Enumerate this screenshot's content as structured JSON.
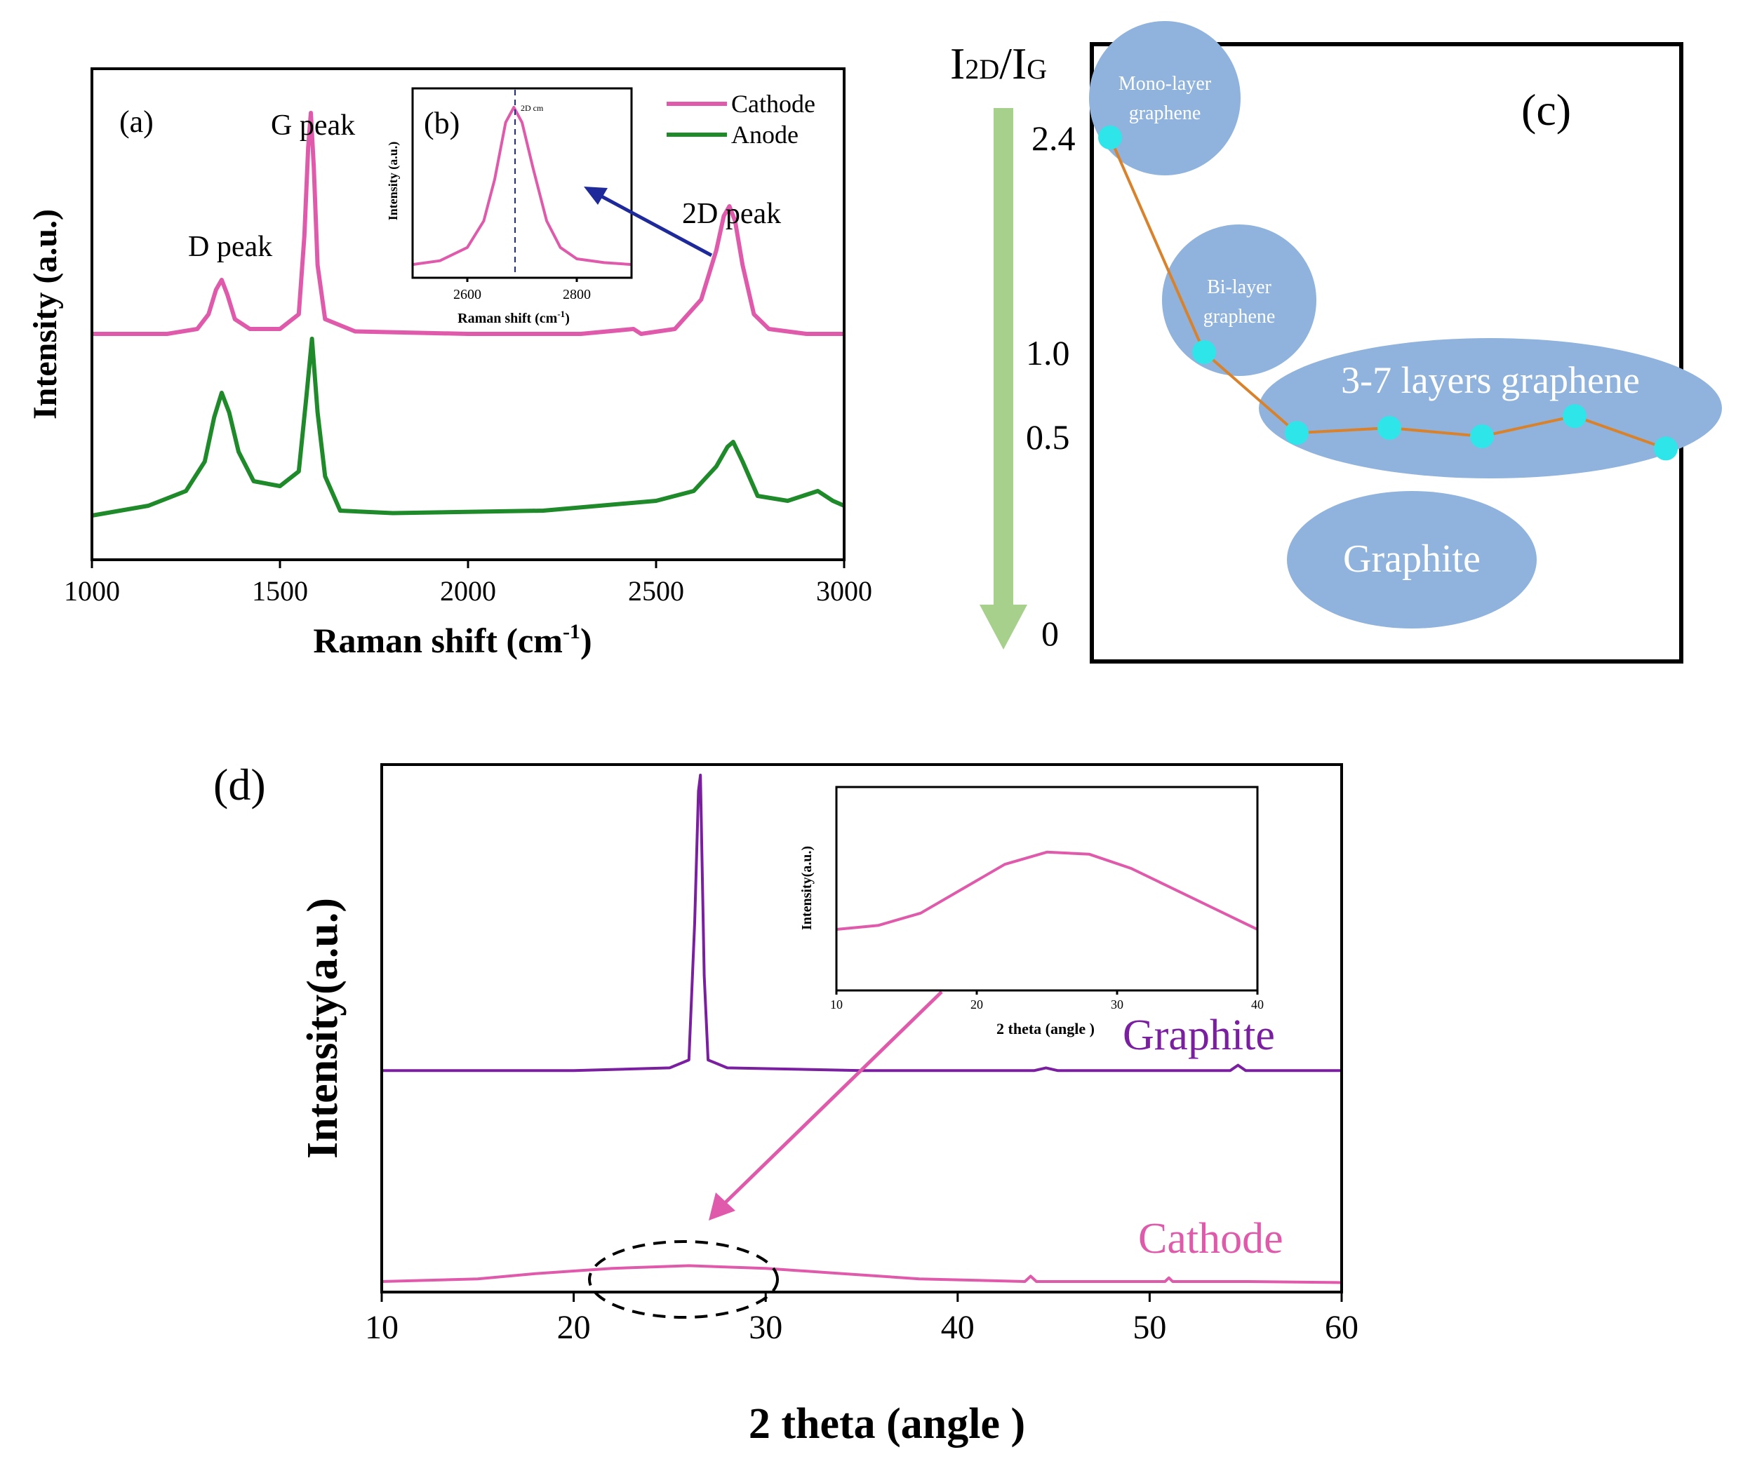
{
  "colors": {
    "cathode": "#e05aab",
    "anode": "#1f8a2a",
    "graphite": "#7a1fa0",
    "bubble": "#8fb3dc",
    "dot": "#2ee6ea",
    "connector": "#d9822b",
    "green_arrow": "#a8d08d",
    "blue_arrow": "#1f2a9a",
    "axis": "#000000"
  },
  "chart_data": [
    {
      "id": "a",
      "type": "line",
      "panel_label": "(a)",
      "xlabel_main": "Raman shift (cm",
      "xlabel_sup": "-1",
      "xlabel_close": ")",
      "ylabel": "Intensity (a.u.)",
      "xlim": [
        1000,
        3000
      ],
      "ylim": [
        0,
        1
      ],
      "x_ticks": [
        1000,
        1500,
        2000,
        2500,
        3000
      ],
      "x_tick_labels": [
        "1000",
        "1500",
        "2000",
        "2500",
        "3000"
      ],
      "series": [
        {
          "name": "Cathode",
          "color_key": "cathode",
          "x": [
            1000,
            1200,
            1280,
            1310,
            1330,
            1345,
            1360,
            1380,
            1420,
            1500,
            1550,
            1565,
            1575,
            1582,
            1590,
            1600,
            1620,
            1700,
            2000,
            2300,
            2440,
            2460,
            2550,
            2620,
            2660,
            2680,
            2695,
            2710,
            2730,
            2760,
            2800,
            2900,
            3000
          ],
          "y": [
            0.46,
            0.46,
            0.47,
            0.5,
            0.55,
            0.57,
            0.54,
            0.49,
            0.47,
            0.47,
            0.5,
            0.66,
            0.84,
            0.91,
            0.8,
            0.6,
            0.49,
            0.465,
            0.46,
            0.46,
            0.47,
            0.46,
            0.47,
            0.53,
            0.63,
            0.7,
            0.72,
            0.69,
            0.6,
            0.5,
            0.47,
            0.46,
            0.46
          ]
        },
        {
          "name": "Anode",
          "color_key": "anode",
          "x": [
            1000,
            1150,
            1250,
            1300,
            1325,
            1345,
            1365,
            1390,
            1430,
            1500,
            1550,
            1570,
            1585,
            1600,
            1620,
            1660,
            1800,
            2200,
            2500,
            2600,
            2660,
            2690,
            2705,
            2730,
            2770,
            2850,
            2930,
            2970,
            3000
          ],
          "y": [
            0.09,
            0.11,
            0.14,
            0.2,
            0.29,
            0.34,
            0.3,
            0.22,
            0.16,
            0.15,
            0.18,
            0.33,
            0.45,
            0.3,
            0.17,
            0.1,
            0.095,
            0.1,
            0.12,
            0.14,
            0.19,
            0.23,
            0.24,
            0.2,
            0.13,
            0.12,
            0.14,
            0.12,
            0.11
          ]
        }
      ],
      "legend": [
        {
          "label": "Cathode",
          "color_key": "cathode"
        },
        {
          "label": "Anode",
          "color_key": "anode"
        }
      ],
      "legend_position": "top-right",
      "annotations": [
        "D peak",
        "G peak",
        "2D peak"
      ],
      "inset": {
        "panel_label": "(b)",
        "type": "line",
        "xlabel_main": "Raman shift (cm",
        "xlabel_sup": "-1",
        "xlabel_close": ")",
        "ylabel": "Intensity (a.u.)",
        "xlim": [
          2500,
          2900
        ],
        "ylim": [
          0,
          1
        ],
        "x_ticks": [
          2600,
          2800
        ],
        "x_tick_labels": [
          "2600",
          "2800"
        ],
        "x": [
          2500,
          2550,
          2600,
          2630,
          2650,
          2670,
          2685,
          2700,
          2720,
          2745,
          2770,
          2800,
          2850,
          2900
        ],
        "y": [
          0.07,
          0.09,
          0.16,
          0.3,
          0.52,
          0.82,
          0.9,
          0.82,
          0.58,
          0.3,
          0.16,
          0.1,
          0.08,
          0.07
        ],
        "peak_marker_x": 2690,
        "peak_marker_label": "2D cm"
      }
    },
    {
      "id": "c",
      "type": "scatter",
      "panel_label": "(c)",
      "ylabel": "I2D/IG",
      "ylabel_parts": [
        "I",
        "2D",
        "/I",
        "G"
      ],
      "ylim": [
        0,
        2.6
      ],
      "y_ticks": [
        2.4,
        1.0,
        0.5,
        0
      ],
      "y_tick_labels": [
        "2.4",
        "1.0",
        "0.5",
        "0"
      ],
      "x": [
        1,
        2,
        3,
        4,
        5,
        6,
        7
      ],
      "y": [
        2.4,
        1.0,
        0.52,
        0.55,
        0.5,
        0.62,
        0.47
      ],
      "regions": [
        {
          "label_lines": [
            "Mono-layer",
            "graphene"
          ]
        },
        {
          "label_lines": [
            "Bi-layer",
            "graphene"
          ]
        },
        {
          "label_lines": [
            "3-7 layers graphene"
          ]
        },
        {
          "label_lines": [
            "Graphite"
          ]
        }
      ]
    },
    {
      "id": "d",
      "type": "line",
      "panel_label": "(d)",
      "xlabel": "2 theta (angle )",
      "ylabel": "Intensity(a.u.)",
      "xlim": [
        10,
        60
      ],
      "ylim": [
        0,
        1
      ],
      "x_ticks": [
        10,
        20,
        30,
        40,
        50,
        60
      ],
      "x_tick_labels": [
        "10",
        "20",
        "30",
        "40",
        "50",
        "60"
      ],
      "series": [
        {
          "name": "Graphite",
          "color_key": "graphite",
          "x": [
            10,
            20,
            25,
            26.0,
            26.3,
            26.5,
            26.6,
            26.8,
            27.0,
            28,
            35,
            44,
            44.6,
            45.2,
            50,
            54.2,
            54.6,
            55.0,
            60
          ],
          "y": [
            0.42,
            0.42,
            0.425,
            0.44,
            0.7,
            0.95,
            0.98,
            0.6,
            0.44,
            0.425,
            0.42,
            0.42,
            0.425,
            0.42,
            0.42,
            0.42,
            0.43,
            0.42,
            0.42
          ]
        },
        {
          "name": "Cathode",
          "color_key": "cathode",
          "x": [
            10,
            15,
            18,
            22,
            26,
            30,
            34,
            38,
            43.5,
            43.8,
            44.1,
            50.8,
            51.0,
            51.2,
            55,
            60
          ],
          "y": [
            0.02,
            0.025,
            0.035,
            0.045,
            0.05,
            0.045,
            0.035,
            0.025,
            0.02,
            0.03,
            0.02,
            0.02,
            0.027,
            0.02,
            0.02,
            0.018
          ]
        }
      ],
      "series_labels": [
        "Graphite",
        "Cathode"
      ],
      "inset": {
        "type": "line",
        "xlabel": "2 theta (angle )",
        "ylabel": "Intensity(a.u.)",
        "xlim": [
          10,
          40
        ],
        "ylim": [
          0,
          1
        ],
        "x_ticks": [
          10,
          20,
          30,
          40
        ],
        "x_tick_labels": [
          "10",
          "20",
          "30",
          "40"
        ],
        "x": [
          10,
          13,
          16,
          19,
          22,
          25,
          28,
          31,
          34,
          37,
          40
        ],
        "y": [
          0.3,
          0.32,
          0.38,
          0.5,
          0.62,
          0.68,
          0.67,
          0.6,
          0.5,
          0.4,
          0.3
        ]
      }
    }
  ]
}
